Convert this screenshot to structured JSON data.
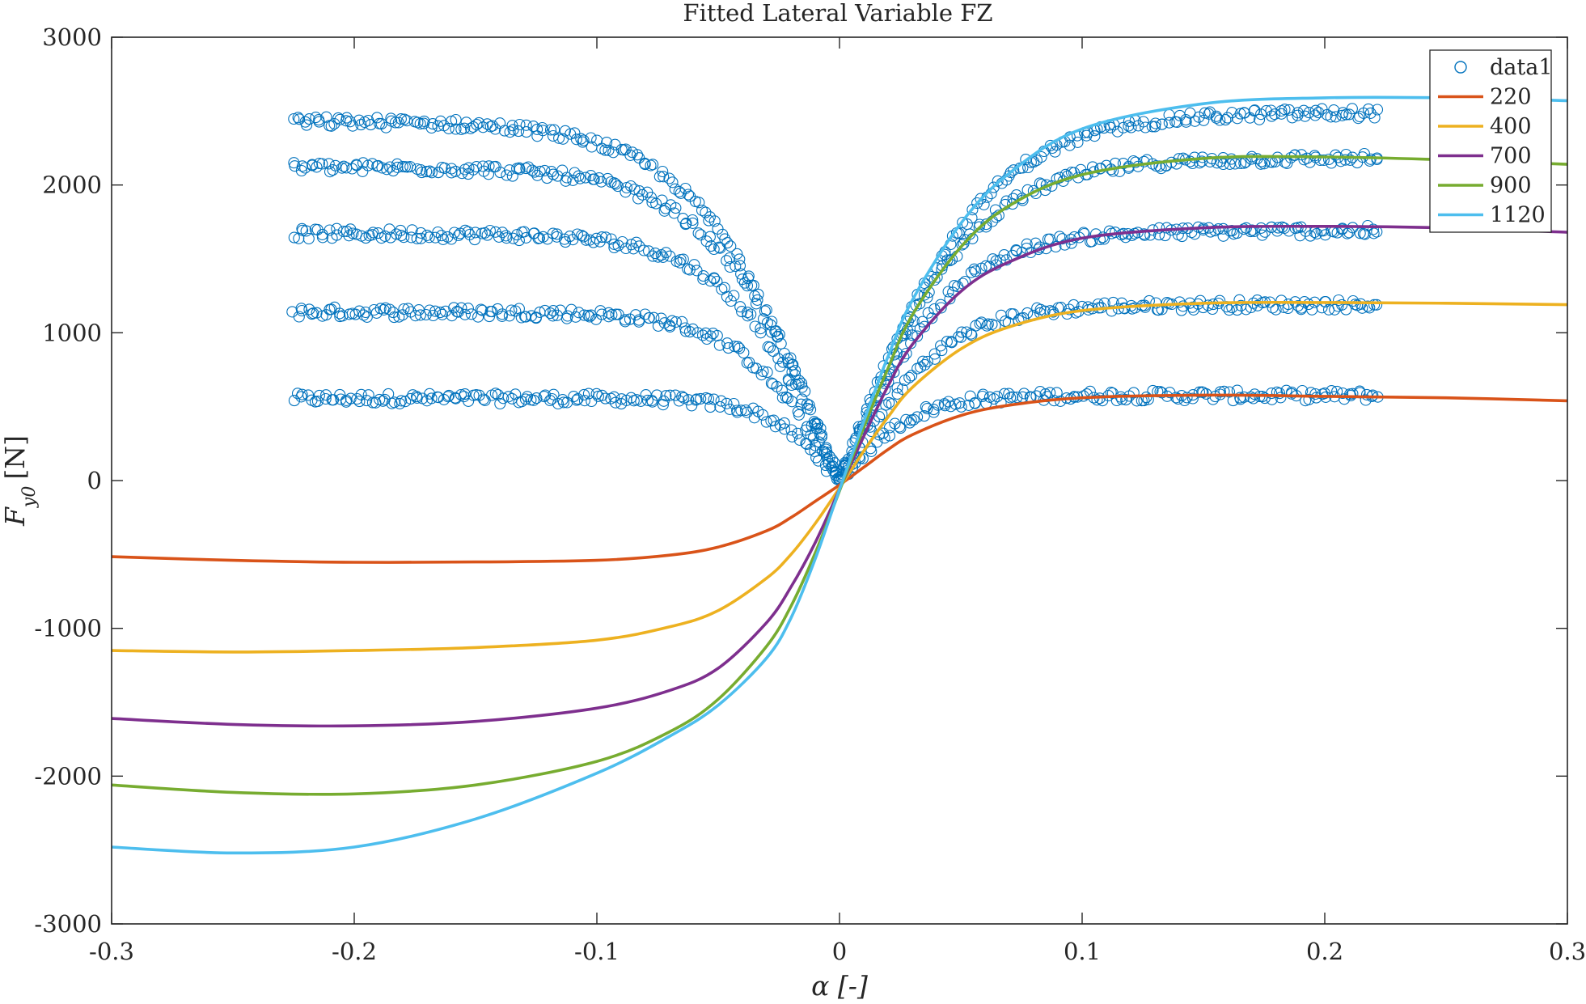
{
  "chart_data": {
    "type": "scatter",
    "title": "Fitted Lateral Variable FZ",
    "xlabel": "α [-]",
    "ylabel_main": "F",
    "ylabel_sub": "y0",
    "ylabel_unit": "[N]",
    "xlim": [
      -0.3,
      0.3
    ],
    "ylim": [
      -3000,
      3000
    ],
    "xticks": [
      -0.3,
      -0.2,
      -0.1,
      0,
      0.1,
      0.2,
      0.3
    ],
    "xtick_labels": [
      "-0.3",
      "-0.2",
      "-0.1",
      "0",
      "0.1",
      "0.2",
      "0.3"
    ],
    "yticks": [
      -3000,
      -2000,
      -1000,
      0,
      1000,
      2000,
      3000
    ],
    "ytick_labels": [
      "-3000",
      "-2000",
      "-1000",
      "0",
      "1000",
      "2000",
      "3000"
    ],
    "grid": false,
    "legend_position": "top-right",
    "legend": [
      "data1",
      "220",
      "400",
      "700",
      "900",
      "1120"
    ],
    "scatter_series": {
      "name": "data1",
      "color": "#0072BD",
      "x_range": [
        -0.225,
        0.222
      ],
      "groups": [
        {
          "fz": 220,
          "neg_plateau": -555,
          "pos_plateau": 575,
          "slope": 18500
        },
        {
          "fz": 400,
          "neg_plateau": -1140,
          "pos_plateau": 1190,
          "slope": 27500
        },
        {
          "fz": 700,
          "neg_plateau": -1670,
          "pos_plateau": 1690,
          "slope": 36000
        },
        {
          "fz": 900,
          "neg_plateau": -2120,
          "pos_plateau": 2180,
          "slope": 40000
        },
        {
          "fz": 1120,
          "neg_plateau": -2430,
          "pos_plateau": 2490,
          "slope": 42000
        }
      ]
    },
    "series": [
      {
        "name": "220",
        "color": "#D95319",
        "x": [
          -0.3,
          -0.25,
          -0.2,
          -0.15,
          -0.1,
          -0.07,
          -0.05,
          -0.03,
          -0.02,
          -0.01,
          0,
          0.01,
          0.02,
          0.03,
          0.05,
          0.07,
          0.1,
          0.15,
          0.2,
          0.25,
          0.3
        ],
        "y": [
          -515,
          -540,
          -553,
          -551,
          -540,
          -505,
          -450,
          -340,
          -250,
          -140,
          -30,
          90,
          210,
          310,
          440,
          510,
          560,
          578,
          570,
          560,
          540
        ]
      },
      {
        "name": "400",
        "color": "#EDB120",
        "x": [
          -0.3,
          -0.25,
          -0.2,
          -0.15,
          -0.1,
          -0.07,
          -0.05,
          -0.03,
          -0.02,
          -0.01,
          0,
          0.01,
          0.02,
          0.03,
          0.05,
          0.07,
          0.1,
          0.15,
          0.2,
          0.25,
          0.3
        ],
        "y": [
          -1150,
          -1160,
          -1150,
          -1130,
          -1080,
          -990,
          -880,
          -660,
          -500,
          -290,
          -50,
          200,
          430,
          630,
          890,
          1040,
          1150,
          1200,
          1205,
          1200,
          1190
        ]
      },
      {
        "name": "700",
        "color": "#7E2F8E",
        "x": [
          -0.3,
          -0.25,
          -0.2,
          -0.15,
          -0.1,
          -0.07,
          -0.05,
          -0.03,
          -0.02,
          -0.01,
          0,
          0.01,
          0.02,
          0.03,
          0.05,
          0.07,
          0.1,
          0.15,
          0.2,
          0.25,
          0.3
        ],
        "y": [
          -1610,
          -1650,
          -1660,
          -1630,
          -1540,
          -1420,
          -1270,
          -960,
          -720,
          -420,
          -60,
          300,
          640,
          920,
          1280,
          1480,
          1640,
          1710,
          1720,
          1710,
          1680
        ]
      },
      {
        "name": "900",
        "color": "#77AC30",
        "x": [
          -0.3,
          -0.25,
          -0.2,
          -0.15,
          -0.1,
          -0.07,
          -0.05,
          -0.03,
          -0.02,
          -0.01,
          0,
          0.01,
          0.02,
          0.03,
          0.05,
          0.07,
          0.1,
          0.15,
          0.2,
          0.25,
          0.3
        ],
        "y": [
          -2060,
          -2110,
          -2120,
          -2060,
          -1900,
          -1700,
          -1480,
          -1120,
          -850,
          -490,
          -70,
          360,
          760,
          1120,
          1580,
          1860,
          2070,
          2180,
          2190,
          2170,
          2140
        ]
      },
      {
        "name": "1120",
        "color": "#4DBEEE",
        "x": [
          -0.3,
          -0.25,
          -0.2,
          -0.15,
          -0.1,
          -0.07,
          -0.05,
          -0.03,
          -0.02,
          -0.01,
          0,
          0.01,
          0.02,
          0.03,
          0.05,
          0.07,
          0.1,
          0.15,
          0.2,
          0.25,
          0.3
        ],
        "y": [
          -2480,
          -2520,
          -2480,
          -2290,
          -1980,
          -1730,
          -1520,
          -1200,
          -930,
          -530,
          -60,
          400,
          840,
          1220,
          1740,
          2080,
          2380,
          2550,
          2590,
          2590,
          2570
        ]
      }
    ]
  }
}
